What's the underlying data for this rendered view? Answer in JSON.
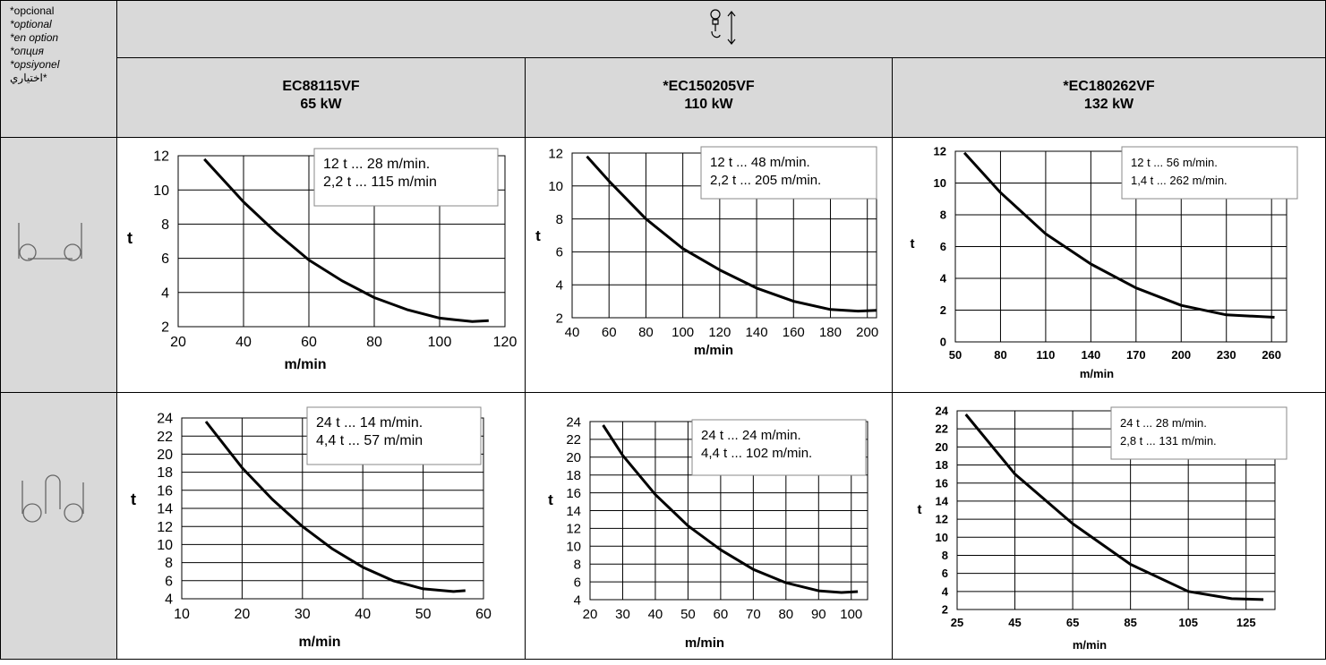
{
  "options": {
    "lines": [
      "*opcional",
      "*optional",
      "*en option",
      "*опция",
      "*opsiyonel",
      "اختياري*"
    ]
  },
  "icons": {
    "header": "hoist-hook-icon",
    "row1": "single-reeving-icon",
    "row2": "double-reeving-icon"
  },
  "models": [
    {
      "name": "EC88115VF",
      "power": "65 kW"
    },
    {
      "name": "*EC150205VF",
      "power": "110 kW"
    },
    {
      "name": "*EC180262VF",
      "power": "132 kW"
    }
  ],
  "chart_data": [
    {
      "id": "c11",
      "type": "line",
      "ylabel": "t",
      "xlabel": "m/min",
      "xlim": [
        20,
        120
      ],
      "xticks": [
        20,
        40,
        60,
        80,
        100,
        120
      ],
      "ylim": [
        2,
        12
      ],
      "yticks": [
        2,
        4,
        6,
        8,
        10,
        12
      ],
      "legend": [
        "12 t ... 28 m/min.",
        "2,2 t ... 115 m/min"
      ],
      "x": [
        28,
        40,
        50,
        60,
        70,
        80,
        90,
        100,
        110,
        115
      ],
      "y": [
        11.8,
        9.3,
        7.5,
        5.9,
        4.7,
        3.7,
        3.0,
        2.5,
        2.3,
        2.35
      ]
    },
    {
      "id": "c12",
      "type": "line",
      "ylabel": "t",
      "xlabel": "m/min",
      "xlim": [
        40,
        205
      ],
      "xticks": [
        40,
        60,
        80,
        100,
        120,
        140,
        160,
        180,
        200
      ],
      "ylim": [
        2,
        12
      ],
      "yticks": [
        2,
        4,
        6,
        8,
        10,
        12
      ],
      "legend": [
        "12 t ... 48 m/min.",
        "2,2 t ... 205 m/min."
      ],
      "x": [
        48,
        60,
        80,
        100,
        120,
        140,
        160,
        180,
        195,
        205
      ],
      "y": [
        11.8,
        10.3,
        8.0,
        6.2,
        4.9,
        3.8,
        3.0,
        2.5,
        2.4,
        2.45
      ]
    },
    {
      "id": "c13",
      "type": "line",
      "ylabel": "t",
      "xlabel": "m/min",
      "xlim": [
        50,
        270
      ],
      "xticks": [
        50,
        80,
        110,
        140,
        170,
        200,
        230,
        260
      ],
      "ylim": [
        0,
        12
      ],
      "yticks": [
        0,
        2,
        4,
        6,
        8,
        10,
        12
      ],
      "legend": [
        "12 t ... 56 m/min.",
        "1,4 t ... 262 m/min."
      ],
      "x": [
        56,
        80,
        110,
        140,
        170,
        200,
        230,
        262
      ],
      "y": [
        11.9,
        9.4,
        6.8,
        4.9,
        3.4,
        2.3,
        1.7,
        1.55
      ]
    },
    {
      "id": "c21",
      "type": "line",
      "ylabel": "t",
      "xlabel": "m/min",
      "xlim": [
        10,
        60
      ],
      "xticks": [
        10,
        20,
        30,
        40,
        50,
        60
      ],
      "ylim": [
        4,
        24
      ],
      "yticks": [
        4,
        6,
        8,
        10,
        12,
        14,
        16,
        18,
        20,
        22,
        24
      ],
      "legend": [
        "24 t ... 14 m/min.",
        "4,4 t ... 57 m/min"
      ],
      "x": [
        14,
        20,
        25,
        30,
        35,
        40,
        45,
        50,
        55,
        57
      ],
      "y": [
        23.6,
        18.5,
        15.0,
        12.0,
        9.5,
        7.5,
        6.0,
        5.1,
        4.8,
        4.9
      ]
    },
    {
      "id": "c22",
      "type": "line",
      "ylabel": "t",
      "xlabel": "m/min",
      "xlim": [
        20,
        105
      ],
      "xticks": [
        20,
        30,
        40,
        50,
        60,
        70,
        80,
        90,
        100
      ],
      "ylim": [
        4,
        24
      ],
      "yticks": [
        4,
        6,
        8,
        10,
        12,
        14,
        16,
        18,
        20,
        22,
        24
      ],
      "legend": [
        "24 t ... 24 m/min.",
        "4,4 t ... 102 m/min."
      ],
      "x": [
        24,
        30,
        40,
        50,
        60,
        70,
        80,
        90,
        97,
        102
      ],
      "y": [
        23.6,
        20.2,
        15.8,
        12.3,
        9.6,
        7.4,
        5.9,
        5.0,
        4.8,
        4.9
      ]
    },
    {
      "id": "c23",
      "type": "line",
      "ylabel": "t",
      "xlabel": "m/min",
      "xlim": [
        25,
        135
      ],
      "xticks": [
        25,
        45,
        65,
        85,
        105,
        125
      ],
      "ylim": [
        2,
        24
      ],
      "yticks": [
        2,
        4,
        6,
        8,
        10,
        12,
        14,
        16,
        18,
        20,
        22,
        24
      ],
      "legend": [
        "24 t ... 28 m/min.",
        "2,8 t ... 131 m/min."
      ],
      "x": [
        28,
        45,
        65,
        85,
        105,
        120,
        131
      ],
      "y": [
        23.6,
        17.0,
        11.5,
        7.0,
        4.0,
        3.2,
        3.1
      ]
    }
  ]
}
